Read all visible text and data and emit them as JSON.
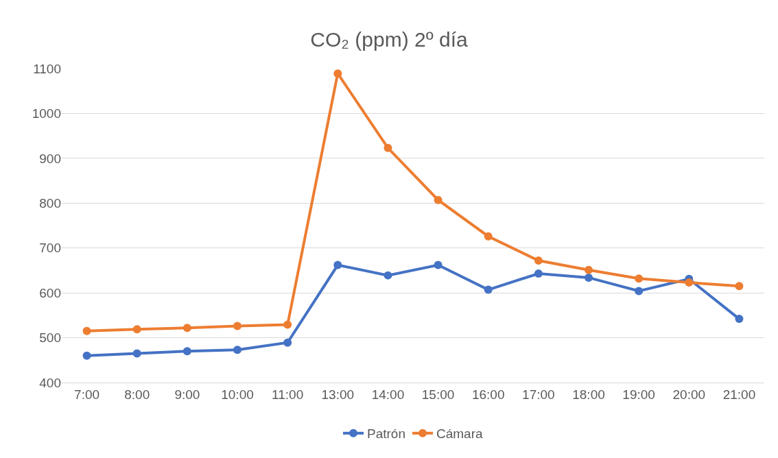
{
  "chart_data": {
    "type": "line",
    "title": "CO₂ (ppm) 2º día",
    "categories": [
      "7:00",
      "8:00",
      "9:00",
      "10:00",
      "11:00",
      "13:00",
      "14:00",
      "15:00",
      "16:00",
      "17:00",
      "18:00",
      "19:00",
      "20:00",
      "21:00"
    ],
    "series": [
      {
        "name": "Patrón",
        "color": "#4472c4",
        "values": [
          460,
          465,
          470,
          473,
          489,
          662,
          639,
          662,
          607,
          643,
          634,
          604,
          631,
          542
        ]
      },
      {
        "name": "Cámara",
        "color": "#ed7d31",
        "values": [
          515,
          519,
          522,
          526,
          529,
          1089,
          923,
          807,
          726,
          672,
          651,
          632,
          623,
          615
        ]
      }
    ],
    "ylim": [
      400,
      1100
    ],
    "yticks": [
      400,
      500,
      600,
      700,
      800,
      900,
      1000,
      1100
    ],
    "grid": "y",
    "legend": "bottom",
    "marker": "circle",
    "line_style": "solid"
  }
}
